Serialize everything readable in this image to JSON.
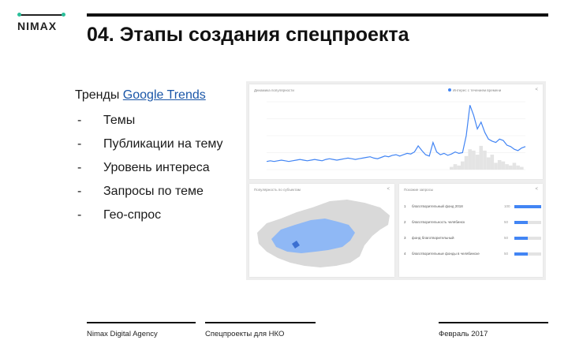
{
  "logo": {
    "text": "NIMAX",
    "accent": "#2bbf9a"
  },
  "slide": {
    "title": "04. Этапы создания спецпроекта"
  },
  "intro": {
    "prefix": "Тренды ",
    "link_text": "Google Trends"
  },
  "bullets": [
    {
      "dash": "-",
      "text": "Темы"
    },
    {
      "dash": "-",
      "text": "Публикации на тему"
    },
    {
      "dash": "-",
      "text": "Уровень интереса"
    },
    {
      "dash": "-",
      "text": "Запросы по теме"
    },
    {
      "dash": "-",
      "text": "Гео-спрос"
    }
  ],
  "trends_screenshot": {
    "interest_card": {
      "title": "Динамика популярности",
      "legend": "Интерес с течением времени"
    },
    "chart_data": {
      "type": "area",
      "series_color": "#4285f4",
      "line": [
        12,
        13,
        12,
        13,
        14,
        13,
        12,
        13,
        14,
        15,
        14,
        13,
        14,
        15,
        14,
        13,
        15,
        16,
        15,
        14,
        15,
        16,
        17,
        16,
        15,
        16,
        17,
        18,
        19,
        17,
        16,
        18,
        20,
        19,
        21,
        22,
        20,
        22,
        24,
        23,
        26,
        35,
        28,
        22,
        20,
        40,
        26,
        22,
        24,
        21,
        23,
        26,
        24,
        25,
        50,
        95,
        80,
        60,
        70,
        55,
        45,
        42,
        40,
        45,
        43,
        36,
        34,
        30,
        28,
        32,
        34
      ],
      "bars": [
        0,
        0,
        0,
        0,
        0,
        0,
        0,
        0,
        0,
        0,
        0,
        0,
        0,
        0,
        0,
        0,
        0,
        0,
        0,
        0,
        0,
        0,
        0,
        0,
        0,
        0,
        0,
        0,
        0,
        0,
        0,
        0,
        0,
        0,
        0,
        0,
        0,
        0,
        0,
        0,
        0,
        0,
        0,
        0,
        0,
        0,
        0,
        0,
        0,
        0,
        4,
        8,
        6,
        12,
        20,
        30,
        28,
        22,
        35,
        28,
        18,
        22,
        10,
        14,
        12,
        8,
        6,
        10,
        6,
        4,
        0
      ],
      "ylim": [
        0,
        100
      ]
    },
    "map_card": {
      "title": "Популярность по субъектам"
    },
    "queries_card": {
      "title": "Похожие запросы",
      "rows": [
        {
          "n": "1",
          "text": "благотворительный фонд 2018",
          "value": "100",
          "fill": 1.0
        },
        {
          "n": "2",
          "text": "благотворительность челябинск",
          "value": "50",
          "fill": 0.5
        },
        {
          "n": "3",
          "text": "фонд благотворительный",
          "value": "50",
          "fill": 0.5
        },
        {
          "n": "4",
          "text": "благотворительные фонды в челябинске",
          "value": "50",
          "fill": 0.5
        }
      ]
    }
  },
  "footer": {
    "agency": "Nimax Digital Agency",
    "topic": "Спецпроекты для НКО",
    "date": "Февраль 2017"
  }
}
